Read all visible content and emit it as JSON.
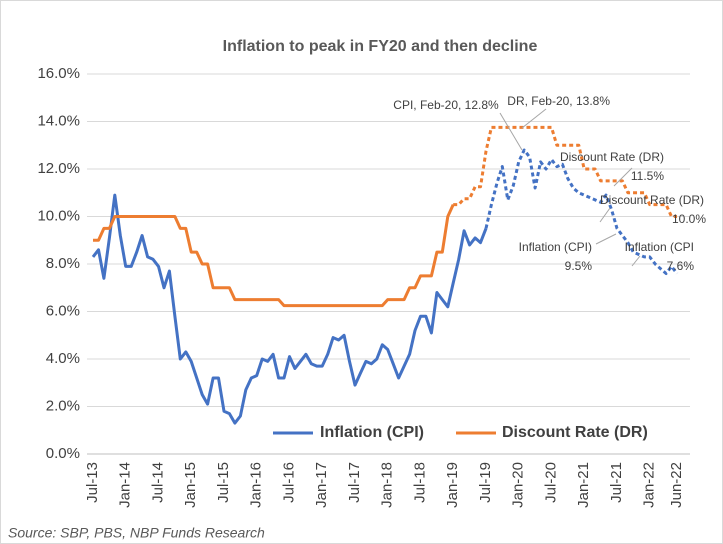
{
  "chart_data": {
    "type": "line",
    "title": "Inflation to peak in FY20 and then decline",
    "source": "Source: SBP, PBS, NBP Funds Research",
    "categories": [
      "Jul-13",
      null,
      null,
      null,
      null,
      null,
      "Jan-14",
      null,
      null,
      null,
      null,
      null,
      "Jul-14",
      null,
      null,
      null,
      null,
      null,
      "Jan-15",
      null,
      null,
      null,
      null,
      null,
      "Jul-15",
      null,
      null,
      null,
      null,
      null,
      "Jan-16",
      null,
      null,
      null,
      null,
      null,
      "Jul-16",
      null,
      null,
      null,
      null,
      null,
      "Jan-17",
      null,
      null,
      null,
      null,
      null,
      "Jul-17",
      null,
      null,
      null,
      null,
      null,
      "Jan-18",
      null,
      null,
      null,
      null,
      null,
      "Jul-18",
      null,
      null,
      null,
      null,
      null,
      "Jan-19",
      null,
      null,
      null,
      null,
      null,
      "Jul-19",
      null,
      null,
      null,
      null,
      null,
      "Jan-20",
      null,
      null,
      null,
      null,
      null,
      "Jul-20",
      null,
      null,
      null,
      null,
      null,
      "Jan-21",
      null,
      null,
      null,
      null,
      null,
      "Jul-21",
      null,
      null,
      null,
      null,
      null,
      "Jan-22",
      null,
      null,
      null,
      null,
      "Jun-22"
    ],
    "series": [
      {
        "name": "Inflation (CPI)",
        "color": "#4472c4",
        "dashed_from": 72,
        "values": [
          8.3,
          8.6,
          7.4,
          9.1,
          10.9,
          9.2,
          7.9,
          7.9,
          8.5,
          9.2,
          8.3,
          8.2,
          7.9,
          7.0,
          7.7,
          5.8,
          4.0,
          4.3,
          3.9,
          3.2,
          2.5,
          2.1,
          3.2,
          3.2,
          1.8,
          1.7,
          1.3,
          1.6,
          2.7,
          3.2,
          3.3,
          4.0,
          3.9,
          4.2,
          3.2,
          3.2,
          4.1,
          3.6,
          3.9,
          4.2,
          3.8,
          3.7,
          3.7,
          4.2,
          4.9,
          4.8,
          5.0,
          3.9,
          2.9,
          3.4,
          3.9,
          3.8,
          4.0,
          4.6,
          4.4,
          3.8,
          3.2,
          3.7,
          4.2,
          5.2,
          5.8,
          5.8,
          5.1,
          6.8,
          6.5,
          6.2,
          7.2,
          8.2,
          9.4,
          8.8,
          9.1,
          8.9,
          9.5,
          10.5,
          11.4,
          12.1,
          10.7,
          11.3,
          12.3,
          12.8,
          12.5,
          11.2,
          12.3,
          12.0,
          12.4,
          12.1,
          12.2,
          11.6,
          11.2,
          11.0,
          10.9,
          10.8,
          10.7,
          10.6,
          10.9,
          10.3,
          9.5,
          9.2,
          8.9,
          8.5,
          8.4,
          8.3,
          8.3,
          8.0,
          7.8,
          7.6,
          7.9,
          7.6
        ]
      },
      {
        "name": "Discount Rate (DR)",
        "color": "#ed7d31",
        "dashed_from": 66,
        "values": [
          9.0,
          9.0,
          9.5,
          9.5,
          10.0,
          10.0,
          10.0,
          10.0,
          10.0,
          10.0,
          10.0,
          10.0,
          10.0,
          10.0,
          10.0,
          10.0,
          9.5,
          9.5,
          8.5,
          8.5,
          8.0,
          8.0,
          7.0,
          7.0,
          7.0,
          7.0,
          6.5,
          6.5,
          6.5,
          6.5,
          6.5,
          6.5,
          6.5,
          6.5,
          6.5,
          6.25,
          6.25,
          6.25,
          6.25,
          6.25,
          6.25,
          6.25,
          6.25,
          6.25,
          6.25,
          6.25,
          6.25,
          6.25,
          6.25,
          6.25,
          6.25,
          6.25,
          6.25,
          6.25,
          6.5,
          6.5,
          6.5,
          6.5,
          7.0,
          7.0,
          7.5,
          7.5,
          7.5,
          8.5,
          8.5,
          10.0,
          10.5,
          10.5,
          10.75,
          10.75,
          11.25,
          11.25,
          12.75,
          13.75,
          13.75,
          13.75,
          13.75,
          13.75,
          13.75,
          13.75,
          13.75,
          13.75,
          13.75,
          13.75,
          13.75,
          13.0,
          13.0,
          13.0,
          13.0,
          13.0,
          12.0,
          12.0,
          12.0,
          11.5,
          11.5,
          11.5,
          11.5,
          11.5,
          11.0,
          11.0,
          11.0,
          11.0,
          10.5,
          10.5,
          10.5,
          10.5,
          10.0,
          10.0
        ]
      }
    ],
    "ylim": [
      0,
      16
    ],
    "yticks": [
      {
        "value": 0,
        "label": "0.0%"
      },
      {
        "value": 2,
        "label": "2.0%"
      },
      {
        "value": 4,
        "label": "4.0%"
      },
      {
        "value": 6,
        "label": "6.0%"
      },
      {
        "value": 8,
        "label": "8.0%"
      },
      {
        "value": 10,
        "label": "10.0%"
      },
      {
        "value": 12,
        "label": "12.0%"
      },
      {
        "value": 14,
        "label": "14.0%"
      },
      {
        "value": 16,
        "label": "16.0%"
      }
    ],
    "grid": true,
    "legend": "lower right",
    "annotations": [
      {
        "lines": [
          "CPI, Feb-20, 12.8%"
        ]
      },
      {
        "lines": [
          "DR, Feb-20, 13.8%"
        ]
      },
      {
        "lines": [
          "Discount Rate (DR)",
          "11.5%"
        ]
      },
      {
        "lines": [
          "Discount Rate (DR)",
          "10.0%"
        ]
      },
      {
        "lines": [
          "Inflation (CPI)",
          "9.5%"
        ]
      },
      {
        "lines": [
          "Inflation (CPI",
          "7.6%"
        ]
      }
    ]
  }
}
